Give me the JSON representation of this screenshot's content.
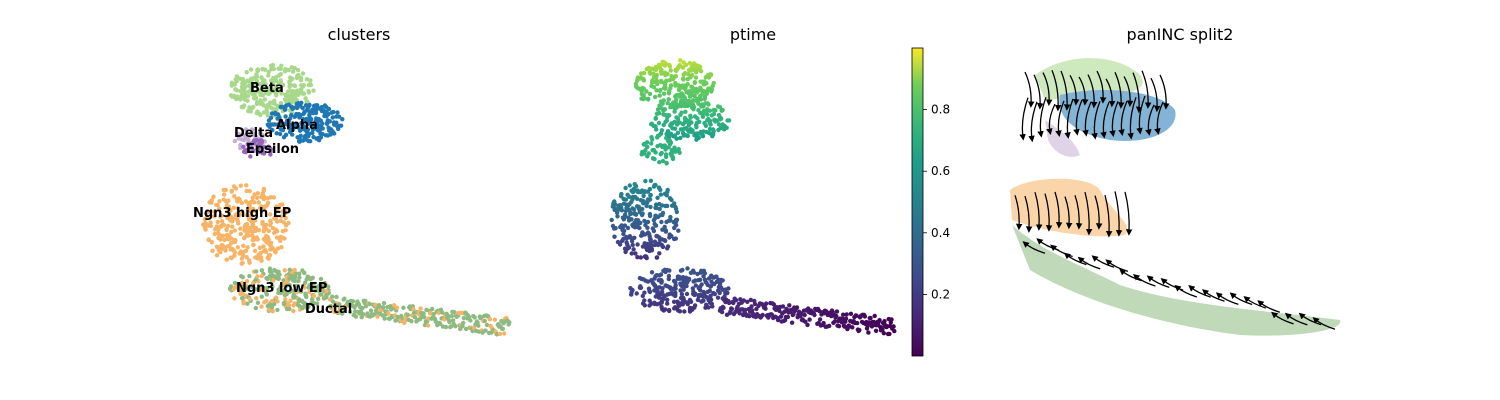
{
  "chart_data": [
    {
      "type": "scatter",
      "title": "clusters",
      "legend": "on data",
      "clusters": [
        {
          "name": "Beta",
          "color": "#a8d88a"
        },
        {
          "name": "Alpha",
          "color": "#1f77b4"
        },
        {
          "name": "Delta",
          "color": "#c5b0d5"
        },
        {
          "name": "Epsilon",
          "color": "#9467bd"
        },
        {
          "name": "Ngn3 high EP",
          "color": "#f7b366"
        },
        {
          "name": "Ngn3 low EP",
          "color": "#8cba80"
        },
        {
          "name": "Ductal",
          "color": "#8cba80"
        }
      ]
    },
    {
      "type": "scatter",
      "title": "ptime",
      "colormap": "viridis",
      "colorbar": {
        "range": [
          0.0,
          1.0
        ],
        "ticks": [
          0.2,
          0.4,
          0.6,
          0.8
        ]
      }
    },
    {
      "type": "streamplot",
      "title": "panINC split2",
      "arrow_color": "#000000"
    }
  ],
  "fills": [
    "#a8d88a",
    "#f7b366",
    "#1f77b4",
    "#c5b0d5"
  ]
}
